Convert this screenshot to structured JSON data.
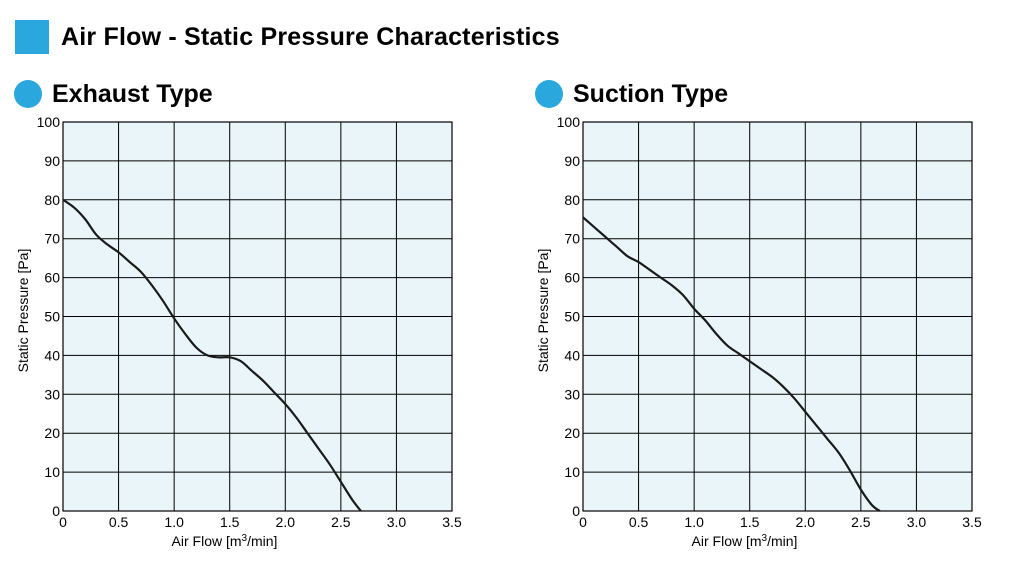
{
  "header": {
    "title": "Air Flow - Static Pressure Characteristics"
  },
  "colors": {
    "accent": "#2aa8de",
    "plot_bg": "#eaf5f9",
    "grid": "#000000",
    "curve": "#1a1a1a"
  },
  "chart_data": [
    {
      "type": "line",
      "title": "Exhaust Type",
      "xlabel": "Air Flow",
      "xunit_pre": "[m",
      "xunit_sup": "3",
      "xunit_post": "/min]",
      "ylabel": "Static Pressure  [Pa]",
      "xlim": [
        0,
        3.5
      ],
      "ylim": [
        0,
        100
      ],
      "xticks": [
        "0",
        "0.5",
        "1.0",
        "1.5",
        "2.0",
        "2.5",
        "3.0",
        "3.5"
      ],
      "yticks": [
        "0",
        "10",
        "20",
        "30",
        "40",
        "50",
        "60",
        "70",
        "80",
        "90",
        "100"
      ],
      "grid": true,
      "series": [
        {
          "name": "Exhaust Type",
          "x": [
            0,
            0.1,
            0.2,
            0.3,
            0.4,
            0.5,
            0.6,
            0.7,
            0.8,
            0.9,
            1.0,
            1.1,
            1.2,
            1.3,
            1.4,
            1.5,
            1.6,
            1.7,
            1.8,
            1.9,
            2.0,
            2.1,
            2.2,
            2.3,
            2.4,
            2.5,
            2.6,
            2.68
          ],
          "y": [
            80,
            78,
            75,
            71,
            68.5,
            66.5,
            64,
            61.5,
            58,
            54,
            49.5,
            45.5,
            42,
            40,
            39.5,
            39.5,
            38.5,
            36,
            33.5,
            30.5,
            27.5,
            24,
            20,
            16,
            12,
            7.5,
            3,
            0
          ]
        }
      ]
    },
    {
      "type": "line",
      "title": "Suction Type",
      "xlabel": "Air Flow",
      "xunit_pre": "[m",
      "xunit_sup": "3",
      "xunit_post": "/min]",
      "ylabel": "Static Pressure  [Pa]",
      "xlim": [
        0,
        3.5
      ],
      "ylim": [
        0,
        100
      ],
      "xticks": [
        "0",
        "0.5",
        "1.0",
        "1.5",
        "2.0",
        "2.5",
        "3.0",
        "3.5"
      ],
      "yticks": [
        "0",
        "10",
        "20",
        "30",
        "40",
        "50",
        "60",
        "70",
        "80",
        "90",
        "100"
      ],
      "grid": true,
      "series": [
        {
          "name": "Suction Type",
          "x": [
            0,
            0.1,
            0.2,
            0.3,
            0.4,
            0.5,
            0.6,
            0.7,
            0.8,
            0.9,
            1.0,
            1.1,
            1.2,
            1.3,
            1.4,
            1.5,
            1.6,
            1.7,
            1.8,
            1.9,
            2.0,
            2.1,
            2.2,
            2.3,
            2.4,
            2.5,
            2.6,
            2.67
          ],
          "y": [
            75.5,
            73,
            70.5,
            68,
            65.5,
            64,
            62,
            60,
            58,
            55.5,
            52,
            49,
            45.5,
            42.5,
            40.5,
            38.5,
            36.5,
            34.5,
            32,
            29,
            25.5,
            22,
            18.5,
            15,
            10.5,
            5.5,
            1.5,
            0
          ]
        }
      ]
    }
  ]
}
